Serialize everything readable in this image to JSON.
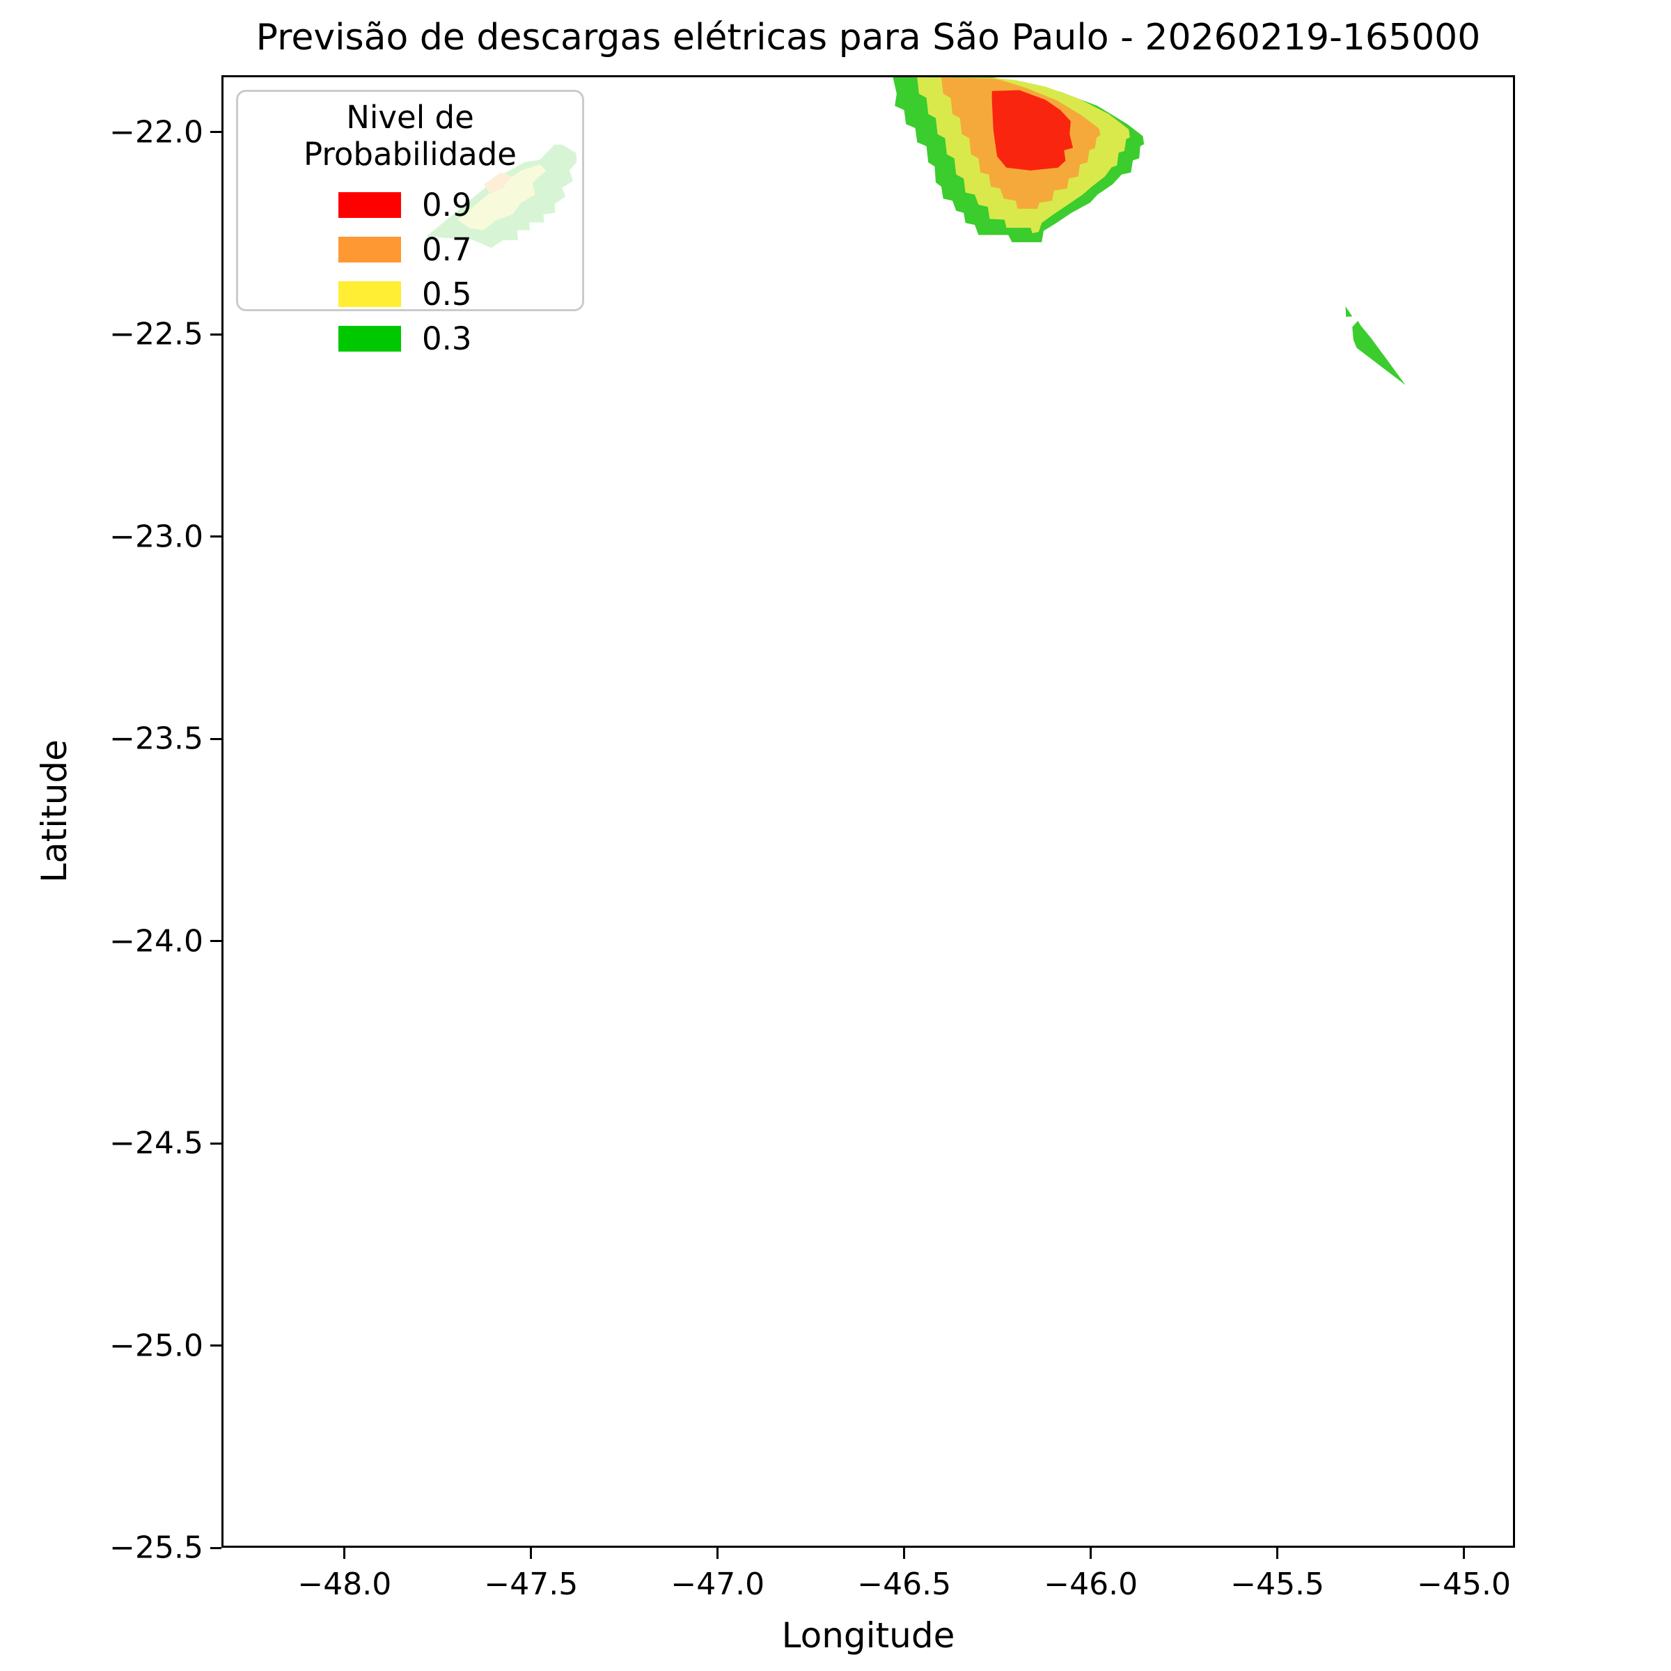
{
  "figure": {
    "title": "Previsão de descargas elétricas para São Paulo - 20260219-165000",
    "xlabel": "Longitude",
    "ylabel": "Latitude"
  },
  "legend": {
    "title": "Nivel de Probabilidade",
    "items": [
      {
        "label": "0.9",
        "color": "#FF0000"
      },
      {
        "label": "0.7",
        "color": "#FD9833"
      },
      {
        "label": "0.5",
        "color": "#FFEE33"
      },
      {
        "label": "0.3",
        "color": "#00C800"
      }
    ]
  },
  "chart_data": {
    "type": "contour",
    "title": "Previsão de descargas elétricas para São Paulo - 20260219-165000",
    "xlabel": "Longitude",
    "ylabel": "Latitude",
    "xlim": [
      -48.33,
      -44.863
    ],
    "ylim": [
      -25.5,
      -21.859
    ],
    "x_ticks": [
      -48.0,
      -47.5,
      -47.0,
      -46.5,
      -46.0,
      -45.5,
      -45.0
    ],
    "x_tick_labels": [
      "−48.0",
      "−47.5",
      "−47.0",
      "−46.5",
      "−46.0",
      "−45.5",
      "−45.0"
    ],
    "y_ticks": [
      -22.0,
      -22.5,
      -23.0,
      -23.5,
      -24.0,
      -24.5,
      -25.0,
      -25.5
    ],
    "y_tick_labels": [
      "−22.0",
      "−22.5",
      "−23.0",
      "−23.5",
      "−24.0",
      "−24.5",
      "−25.0",
      "−25.5"
    ],
    "grid": false,
    "legend_position": "upper left",
    "probability_levels": [
      {
        "level": 0.3,
        "fill_color": "#3BCC2E"
      },
      {
        "level": 0.5,
        "fill_color": "#D9E94B"
      },
      {
        "level": 0.7,
        "fill_color": "#F5A93B"
      },
      {
        "level": 0.9,
        "fill_color": "#FA250E"
      }
    ],
    "regions": [
      {
        "name": "cell-north-prob-0.3",
        "level": 0.3,
        "points": [
          [
            -46.53,
            -21.859
          ],
          [
            -46.52,
            -21.9
          ],
          [
            -46.525,
            -21.93
          ],
          [
            -46.5,
            -21.94
          ],
          [
            -46.495,
            -21.975
          ],
          [
            -46.47,
            -21.985
          ],
          [
            -46.465,
            -22.02
          ],
          [
            -46.44,
            -22.03
          ],
          [
            -46.435,
            -22.07
          ],
          [
            -46.418,
            -22.08
          ],
          [
            -46.415,
            -22.12
          ],
          [
            -46.4,
            -22.13
          ],
          [
            -46.395,
            -22.16
          ],
          [
            -46.37,
            -22.165
          ],
          [
            -46.36,
            -22.19
          ],
          [
            -46.34,
            -22.195
          ],
          [
            -46.335,
            -22.22
          ],
          [
            -46.31,
            -22.225
          ],
          [
            -46.3,
            -22.25
          ],
          [
            -46.22,
            -22.25
          ],
          [
            -46.21,
            -22.268
          ],
          [
            -46.13,
            -22.268
          ],
          [
            -46.125,
            -22.24
          ],
          [
            -46.09,
            -22.22
          ],
          [
            -46.05,
            -22.195
          ],
          [
            -46.0,
            -22.17
          ],
          [
            -45.98,
            -22.15
          ],
          [
            -45.94,
            -22.125
          ],
          [
            -45.915,
            -22.1
          ],
          [
            -45.89,
            -22.095
          ],
          [
            -45.885,
            -22.065
          ],
          [
            -45.868,
            -22.06
          ],
          [
            -45.865,
            -22.03
          ],
          [
            -45.855,
            -22.025
          ],
          [
            -45.858,
            -22.005
          ],
          [
            -45.9,
            -21.975
          ],
          [
            -45.98,
            -21.93
          ],
          [
            -46.08,
            -21.895
          ],
          [
            -46.18,
            -21.872
          ],
          [
            -46.262,
            -21.859
          ]
        ]
      },
      {
        "name": "cell-north-prob-0.5",
        "level": 0.5,
        "points": [
          [
            -46.465,
            -21.859
          ],
          [
            -46.46,
            -21.9
          ],
          [
            -46.44,
            -21.91
          ],
          [
            -46.435,
            -21.95
          ],
          [
            -46.415,
            -21.96
          ],
          [
            -46.41,
            -22.0
          ],
          [
            -46.39,
            -22.01
          ],
          [
            -46.385,
            -22.05
          ],
          [
            -46.365,
            -22.06
          ],
          [
            -46.36,
            -22.1
          ],
          [
            -46.34,
            -22.11
          ],
          [
            -46.335,
            -22.145
          ],
          [
            -46.31,
            -22.15
          ],
          [
            -46.3,
            -22.175
          ],
          [
            -46.275,
            -22.18
          ],
          [
            -46.27,
            -22.21
          ],
          [
            -46.23,
            -22.212
          ],
          [
            -46.225,
            -22.232
          ],
          [
            -46.16,
            -22.232
          ],
          [
            -46.155,
            -22.246
          ],
          [
            -46.138,
            -22.242
          ],
          [
            -46.13,
            -22.22
          ],
          [
            -46.1,
            -22.2
          ],
          [
            -46.06,
            -22.175
          ],
          [
            -46.02,
            -22.15
          ],
          [
            -45.995,
            -22.13
          ],
          [
            -45.96,
            -22.105
          ],
          [
            -45.942,
            -22.082
          ],
          [
            -45.928,
            -22.078
          ],
          [
            -45.923,
            -22.046
          ],
          [
            -45.908,
            -22.042
          ],
          [
            -45.903,
            -22.012
          ],
          [
            -45.893,
            -22.008
          ],
          [
            -45.896,
            -21.988
          ],
          [
            -45.95,
            -21.95
          ],
          [
            -46.03,
            -21.912
          ],
          [
            -46.12,
            -21.882
          ],
          [
            -46.2,
            -21.866
          ],
          [
            -46.26,
            -21.86
          ]
        ]
      },
      {
        "name": "cell-north-prob-0.7",
        "level": 0.7,
        "points": [
          [
            -46.4,
            -21.859
          ],
          [
            -46.395,
            -21.9
          ],
          [
            -46.375,
            -21.91
          ],
          [
            -46.37,
            -21.95
          ],
          [
            -46.35,
            -21.96
          ],
          [
            -46.345,
            -22.0
          ],
          [
            -46.325,
            -22.01
          ],
          [
            -46.32,
            -22.05
          ],
          [
            -46.3,
            -22.06
          ],
          [
            -46.295,
            -22.095
          ],
          [
            -46.272,
            -22.1
          ],
          [
            -46.267,
            -22.13
          ],
          [
            -46.242,
            -22.135
          ],
          [
            -46.232,
            -22.16
          ],
          [
            -46.2,
            -22.165
          ],
          [
            -46.195,
            -22.185
          ],
          [
            -46.142,
            -22.185
          ],
          [
            -46.136,
            -22.17
          ],
          [
            -46.102,
            -22.165
          ],
          [
            -46.097,
            -22.14
          ],
          [
            -46.062,
            -22.135
          ],
          [
            -46.057,
            -22.11
          ],
          [
            -46.032,
            -22.105
          ],
          [
            -46.027,
            -22.075
          ],
          [
            -46.007,
            -22.07
          ],
          [
            -46.002,
            -22.04
          ],
          [
            -45.987,
            -22.035
          ],
          [
            -45.982,
            -22.008
          ],
          [
            -45.972,
            -22.002
          ],
          [
            -45.976,
            -21.986
          ],
          [
            -46.02,
            -21.955
          ],
          [
            -46.09,
            -21.916
          ],
          [
            -46.17,
            -21.886
          ],
          [
            -46.232,
            -21.868
          ],
          [
            -46.26,
            -21.862
          ]
        ]
      },
      {
        "name": "cell-north-prob-0.9",
        "level": 0.9,
        "points": [
          [
            -46.264,
            -21.893
          ],
          [
            -46.19,
            -21.891
          ],
          [
            -46.12,
            -21.915
          ],
          [
            -46.08,
            -21.94
          ],
          [
            -46.052,
            -21.968
          ],
          [
            -46.055,
            -22.0
          ],
          [
            -46.046,
            -22.034
          ],
          [
            -46.07,
            -22.04
          ],
          [
            -46.066,
            -22.066
          ],
          [
            -46.086,
            -22.083
          ],
          [
            -46.16,
            -22.09
          ],
          [
            -46.225,
            -22.083
          ],
          [
            -46.25,
            -22.055
          ],
          [
            -46.26,
            -21.99
          ],
          [
            -46.264,
            -21.914
          ]
        ]
      },
      {
        "name": "cell-west-prob-0.3",
        "level": 0.3,
        "points": [
          [
            -47.785,
            -22.254
          ],
          [
            -47.64,
            -22.143
          ],
          [
            -47.58,
            -22.1
          ],
          [
            -47.52,
            -22.069
          ],
          [
            -47.48,
            -22.064
          ],
          [
            -47.44,
            -22.026
          ],
          [
            -47.418,
            -22.026
          ],
          [
            -47.382,
            -22.047
          ],
          [
            -47.38,
            -22.069
          ],
          [
            -47.4,
            -22.09
          ],
          [
            -47.39,
            -22.116
          ],
          [
            -47.42,
            -22.133
          ],
          [
            -47.41,
            -22.155
          ],
          [
            -47.44,
            -22.173
          ],
          [
            -47.438,
            -22.195
          ],
          [
            -47.47,
            -22.199
          ],
          [
            -47.468,
            -22.219
          ],
          [
            -47.508,
            -22.219
          ],
          [
            -47.506,
            -22.238
          ],
          [
            -47.54,
            -22.238
          ],
          [
            -47.538,
            -22.263
          ],
          [
            -47.578,
            -22.263
          ],
          [
            -47.61,
            -22.282
          ],
          [
            -47.66,
            -22.262
          ],
          [
            -47.72,
            -22.258
          ]
        ]
      },
      {
        "name": "cell-west-prob-0.5",
        "level": 0.5,
        "points": [
          [
            -47.7,
            -22.213
          ],
          [
            -47.6,
            -22.135
          ],
          [
            -47.53,
            -22.09
          ],
          [
            -47.48,
            -22.075
          ],
          [
            -47.462,
            -22.09
          ],
          [
            -47.5,
            -22.12
          ],
          [
            -47.492,
            -22.15
          ],
          [
            -47.53,
            -22.17
          ],
          [
            -47.552,
            -22.198
          ],
          [
            -47.6,
            -22.215
          ],
          [
            -47.63,
            -22.238
          ],
          [
            -47.668,
            -22.233
          ]
        ]
      },
      {
        "name": "cell-west-prob-0.7",
        "level": 0.7,
        "points": [
          [
            -47.63,
            -22.125
          ],
          [
            -47.585,
            -22.095
          ],
          [
            -47.555,
            -22.105
          ],
          [
            -47.58,
            -22.135
          ],
          [
            -47.612,
            -22.148
          ]
        ]
      },
      {
        "name": "cell-east-prob-0.3",
        "level": 0.3,
        "points": [
          [
            -45.28,
            -22.463
          ],
          [
            -45.295,
            -22.478
          ],
          [
            -45.292,
            -22.51
          ],
          [
            -45.283,
            -22.53
          ],
          [
            -45.152,
            -22.622
          ],
          [
            -45.205,
            -22.555
          ],
          [
            -45.245,
            -22.505
          ],
          [
            -45.272,
            -22.475
          ]
        ]
      },
      {
        "name": "cell-east-fragment-prob-0.3",
        "level": 0.3,
        "points": [
          [
            -45.313,
            -22.427
          ],
          [
            -45.295,
            -22.452
          ],
          [
            -45.312,
            -22.453
          ]
        ]
      }
    ]
  }
}
